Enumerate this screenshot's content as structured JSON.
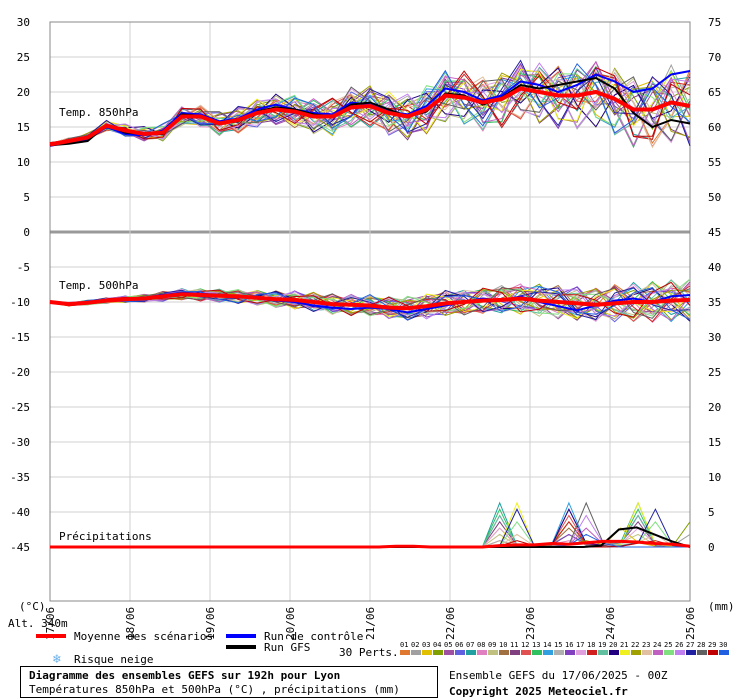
{
  "chart_data": {
    "type": "line",
    "x_labels": [
      "17/06",
      "18/06",
      "19/06",
      "20/06",
      "21/06",
      "22/06",
      "23/06",
      "24/06",
      "25/06"
    ],
    "y_left_ticks": [
      30,
      25,
      20,
      15,
      10,
      5,
      0,
      -5,
      -10,
      -15,
      -20,
      -25,
      -30,
      -35,
      -40,
      -45
    ],
    "y_right_ticks": [
      75,
      70,
      65,
      60,
      55,
      50,
      45,
      40,
      35,
      30,
      25,
      20,
      15,
      10,
      5,
      0
    ],
    "left_unit": "(°C)",
    "right_unit": "(mm)",
    "panels": [
      {
        "label": "Temp. 850hPa",
        "mean": [
          12.5,
          13,
          13.5,
          15.2,
          14.5,
          14,
          14.2,
          16.5,
          16.5,
          15.5,
          16,
          17,
          17.5,
          17.2,
          16.5,
          16.5,
          17.8,
          18,
          17,
          16.5,
          17.5,
          19.5,
          19.2,
          18.5,
          19,
          20.5,
          20,
          19.5,
          19.5,
          20,
          19,
          17.5,
          17.5,
          18.5,
          18
        ],
        "control": [
          12.3,
          12.8,
          13.2,
          15,
          14,
          13.8,
          14.5,
          17,
          16.8,
          15.8,
          16.2,
          17.5,
          18.2,
          17.5,
          17,
          16.8,
          18.5,
          18.2,
          17.2,
          16.8,
          18,
          20.5,
          20,
          18.8,
          19.5,
          21.5,
          21,
          20,
          21,
          22.5,
          21.5,
          20,
          20.5,
          22.5,
          23
        ],
        "gfs": [
          12.4,
          12.6,
          13,
          15.3,
          14.2,
          14,
          14,
          16.8,
          16.6,
          15.5,
          15.8,
          17.2,
          17.8,
          17.5,
          16.8,
          16.5,
          18.2,
          18.5,
          17.5,
          16.5,
          17.2,
          19.8,
          19.5,
          18.2,
          19.2,
          21,
          20.5,
          21,
          21.5,
          22,
          20.5,
          17,
          15,
          16,
          15.5
        ]
      },
      {
        "label": "Temp. 500hPa",
        "mean": [
          -10,
          -10.3,
          -10.1,
          -9.8,
          -9.6,
          -9.5,
          -9.2,
          -8.9,
          -9,
          -9.1,
          -9.2,
          -9.4,
          -9.6,
          -9.7,
          -10,
          -10.3,
          -10.4,
          -10.5,
          -10.8,
          -10.9,
          -10.6,
          -10.2,
          -10,
          -9.8,
          -9.7,
          -9.5,
          -9.8,
          -10,
          -10.2,
          -10.4,
          -10.2,
          -10,
          -10,
          -9.8,
          -9.7
        ],
        "control": [
          -10,
          -10.4,
          -10.2,
          -9.9,
          -9.7,
          -9.4,
          -9,
          -8.7,
          -8.8,
          -9,
          -9.2,
          -9.5,
          -9.8,
          -10,
          -10.5,
          -10.8,
          -11,
          -10.8,
          -11,
          -11.5,
          -11,
          -10.5,
          -10,
          -9.5,
          -9.8,
          -9.2,
          -10,
          -10.6,
          -11.2,
          -10.5,
          -9.8,
          -9.5,
          -10,
          -9.2,
          -9
        ]
      },
      {
        "label": "Précipitations",
        "mean": [
          0,
          0,
          0,
          0,
          0,
          0,
          0,
          0,
          0,
          0,
          0,
          0,
          0,
          0,
          0,
          0,
          0,
          0,
          0,
          0,
          0.1,
          0.1,
          0,
          0,
          0,
          0,
          0.2,
          0.3,
          0.3,
          0.5,
          0.4,
          0.6,
          0.8,
          0.8,
          0.7,
          0.5,
          0.4,
          0.1
        ],
        "gfs": [
          0,
          0,
          0,
          0,
          0,
          0,
          0,
          0,
          0,
          0,
          0,
          0,
          0,
          0,
          0,
          0,
          0,
          0,
          0,
          0,
          0,
          0,
          0,
          0,
          0,
          0,
          0,
          0,
          0,
          0,
          0,
          0.2,
          2.5,
          2.8,
          1.8,
          0.8,
          0
        ]
      }
    ],
    "alt_label": "Alt. 340m",
    "legend": {
      "mean": "Moyenne des scénarios",
      "control": "Run de contrôle",
      "gfs": "Run GFS",
      "snow": "Risque neige",
      "perts_label": "30 Perts.",
      "pert_numbers": [
        "01",
        "02",
        "03",
        "04",
        "05",
        "06",
        "07",
        "08",
        "09",
        "10",
        "11",
        "12",
        "13",
        "14",
        "15",
        "16",
        "17",
        "18",
        "19",
        "20",
        "21",
        "22",
        "23",
        "24",
        "25",
        "26",
        "27",
        "28",
        "29",
        "30"
      ],
      "pert_colors": [
        "#e07830",
        "#a0a0a0",
        "#e0c000",
        "#80a000",
        "#a050a0",
        "#6060e0",
        "#20a0a0",
        "#e080c0",
        "#c0c080",
        "#a07040",
        "#804080",
        "#e05050",
        "#30c060",
        "#30a0e0",
        "#b0b0b0",
        "#8040c0",
        "#e0a0e0",
        "#d02020",
        "#60c0a0",
        "#200080",
        "#f0f020",
        "#a0a000",
        "#e0c0a0",
        "#c060c0",
        "#80e080",
        "#c080f0",
        "#2020a0",
        "#606060",
        "#c00000",
        "#2060e0"
      ],
      "colors": {
        "mean": "#ff0000",
        "control": "#0000ff",
        "gfs": "#000000",
        "snow": "#6ab0e8"
      }
    },
    "footer": {
      "title": "Diagramme des ensembles GEFS sur 192h pour Lyon",
      "subtitle": "Températures 850hPa et 500hPa (°C) , précipitations (mm)",
      "run": "Ensemble GEFS du 17/06/2025 - 00Z",
      "copyright": "Copyright 2025 Meteociel.fr"
    }
  }
}
